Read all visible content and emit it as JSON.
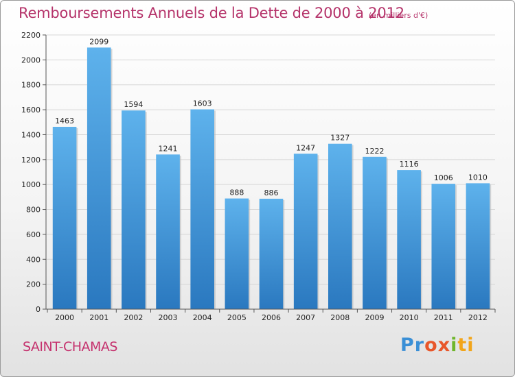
{
  "header": {
    "title": "Remboursements Annuels de la Dette de 2000 à 2012",
    "subtitle": "(en milliers d'€)"
  },
  "footer": {
    "city": "SAINT-CHAMAS",
    "logo_text": "Proxiti"
  },
  "colors": {
    "title": "#b5336a",
    "bar_light": "#5eb2ec",
    "bar_dark": "#2a78bf"
  },
  "chart_data": {
    "type": "bar",
    "title": "Remboursements Annuels de la Dette de 2000 à 2012",
    "subtitle": "(en milliers d'€)",
    "categories": [
      "2000",
      "2001",
      "2002",
      "2003",
      "2004",
      "2005",
      "2006",
      "2007",
      "2008",
      "2009",
      "2010",
      "2011",
      "2012"
    ],
    "values": [
      1463,
      2099,
      1594,
      1241,
      1603,
      888,
      886,
      1247,
      1327,
      1222,
      1116,
      1006,
      1010
    ],
    "ylim": [
      0,
      2200
    ],
    "yticks": [
      0,
      200,
      400,
      600,
      800,
      1000,
      1200,
      1400,
      1600,
      1800,
      2000,
      2200
    ],
    "grid": true,
    "legend": "none"
  }
}
